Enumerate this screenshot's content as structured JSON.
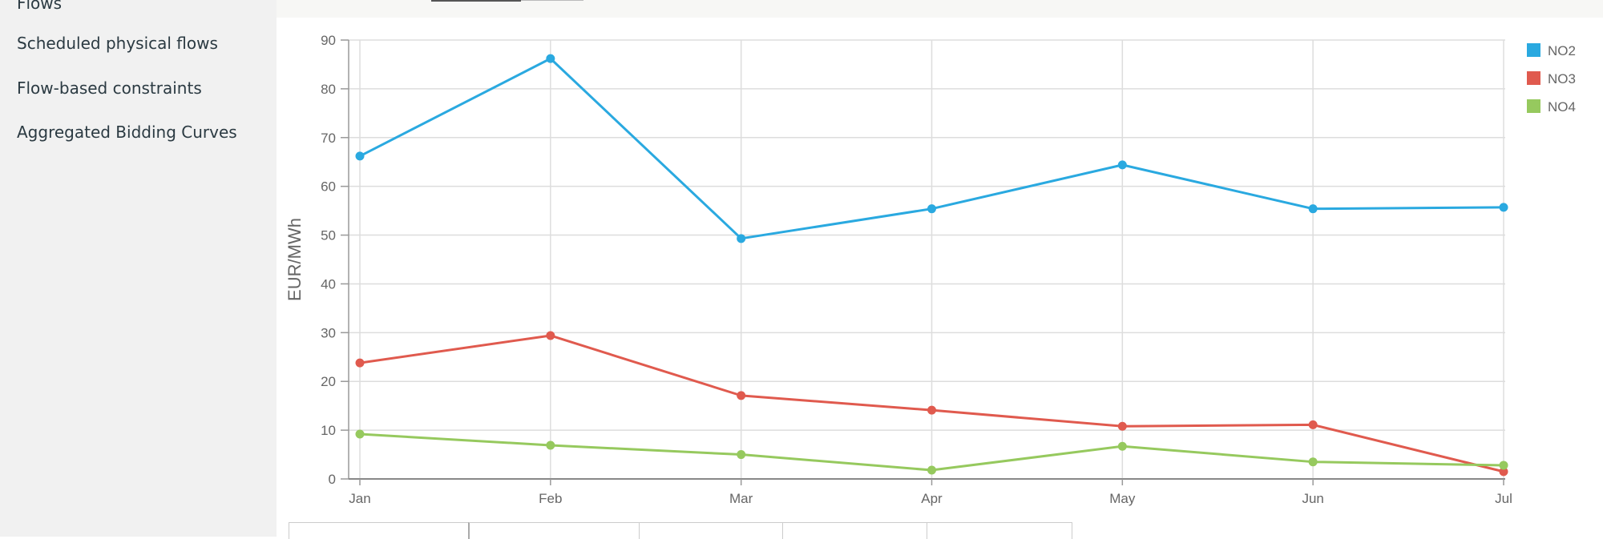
{
  "sidebar": {
    "items": [
      {
        "label": "Flows"
      },
      {
        "label": "Scheduled physical flows"
      },
      {
        "label": "Flow-based constraints"
      },
      {
        "label": "Aggregated Bidding Curves"
      }
    ]
  },
  "chart_data": {
    "type": "line",
    "title": "",
    "xlabel": "",
    "ylabel": "EUR/MWh",
    "categories": [
      "Jan",
      "Feb",
      "Mar",
      "Apr",
      "May",
      "Jun",
      "Jul"
    ],
    "ylim": [
      0,
      90
    ],
    "yticks": [
      0,
      10,
      20,
      30,
      40,
      50,
      60,
      70,
      80,
      90
    ],
    "grid": true,
    "legend_position": "top-right",
    "series": [
      {
        "name": "NO2",
        "color": "#2aa9e0",
        "values": [
          66.2,
          86.2,
          49.3,
          55.4,
          64.4,
          55.4,
          55.7
        ]
      },
      {
        "name": "NO3",
        "color": "#e05a4e",
        "values": [
          23.8,
          29.4,
          17.1,
          14.1,
          10.8,
          11.1,
          1.5
        ]
      },
      {
        "name": "NO4",
        "color": "#96c95e",
        "values": [
          9.2,
          6.9,
          5.0,
          1.8,
          6.7,
          3.5,
          2.8
        ]
      }
    ]
  }
}
